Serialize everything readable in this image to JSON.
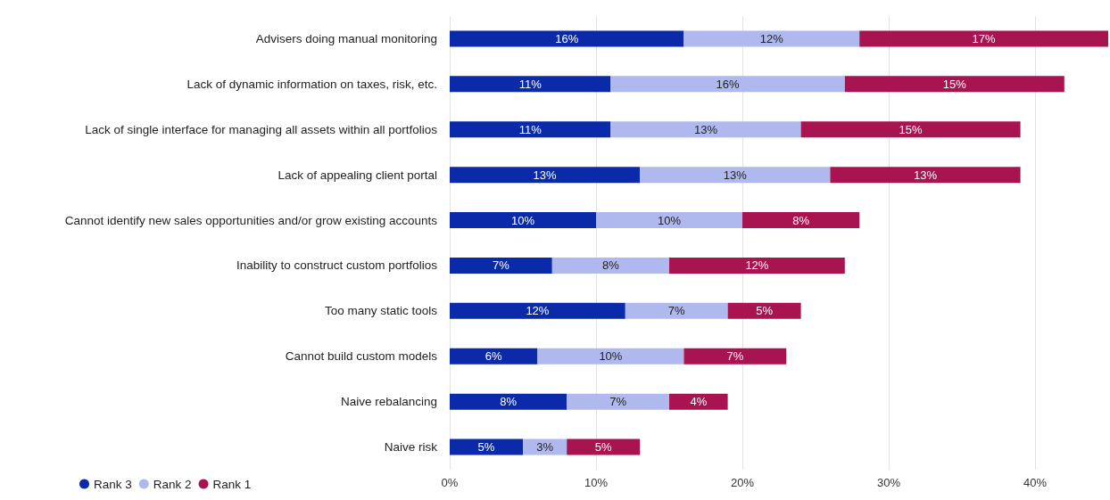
{
  "chart_data": {
    "type": "bar",
    "orientation": "horizontal",
    "stacked": true,
    "categories": [
      "Advisers doing manual monitoring",
      "Lack of dynamic information on taxes, risk, etc.",
      "Lack of single interface for managing all assets within all portfolios",
      "Lack of appealing client portal",
      "Cannot identify new sales opportunities and/or grow existing accounts",
      "Inability to construct custom portfolios",
      "Too many static tools",
      "Cannot build custom models",
      "Naive rebalancing",
      "Naive risk"
    ],
    "series": [
      {
        "name": "Rank 3",
        "color": "#0b2aa9",
        "values": [
          16,
          11,
          11,
          13,
          10,
          7,
          12,
          6,
          8,
          5
        ],
        "value_labels": [
          "16%",
          "11%",
          "11%",
          "13%",
          "10%",
          "7%",
          "12%",
          "6%",
          "8%",
          "5%"
        ]
      },
      {
        "name": "Rank 2",
        "color": "#b0b9ee",
        "values": [
          12,
          16,
          13,
          13,
          10,
          8,
          7,
          10,
          7,
          3
        ],
        "value_labels": [
          "12%",
          "16%",
          "13%",
          "13%",
          "10%",
          "8%",
          "7%",
          "10%",
          "7%",
          "3%"
        ]
      },
      {
        "name": "Rank 1",
        "color": "#a8144f",
        "values": [
          17,
          15,
          15,
          13,
          8,
          12,
          5,
          7,
          4,
          5
        ],
        "value_labels": [
          "17%",
          "15%",
          "15%",
          "13%",
          "8%",
          "12%",
          "5%",
          "7%",
          "4%",
          "5%"
        ]
      }
    ],
    "xlim": [
      0,
      45
    ],
    "xticks": [
      {
        "value": 0,
        "label": "0%"
      },
      {
        "value": 10,
        "label": "10%"
      },
      {
        "value": 20,
        "label": "20%"
      },
      {
        "value": 30,
        "label": "30%"
      },
      {
        "value": 40,
        "label": "40%"
      }
    ],
    "grid": "x",
    "legend": "bottom left"
  }
}
